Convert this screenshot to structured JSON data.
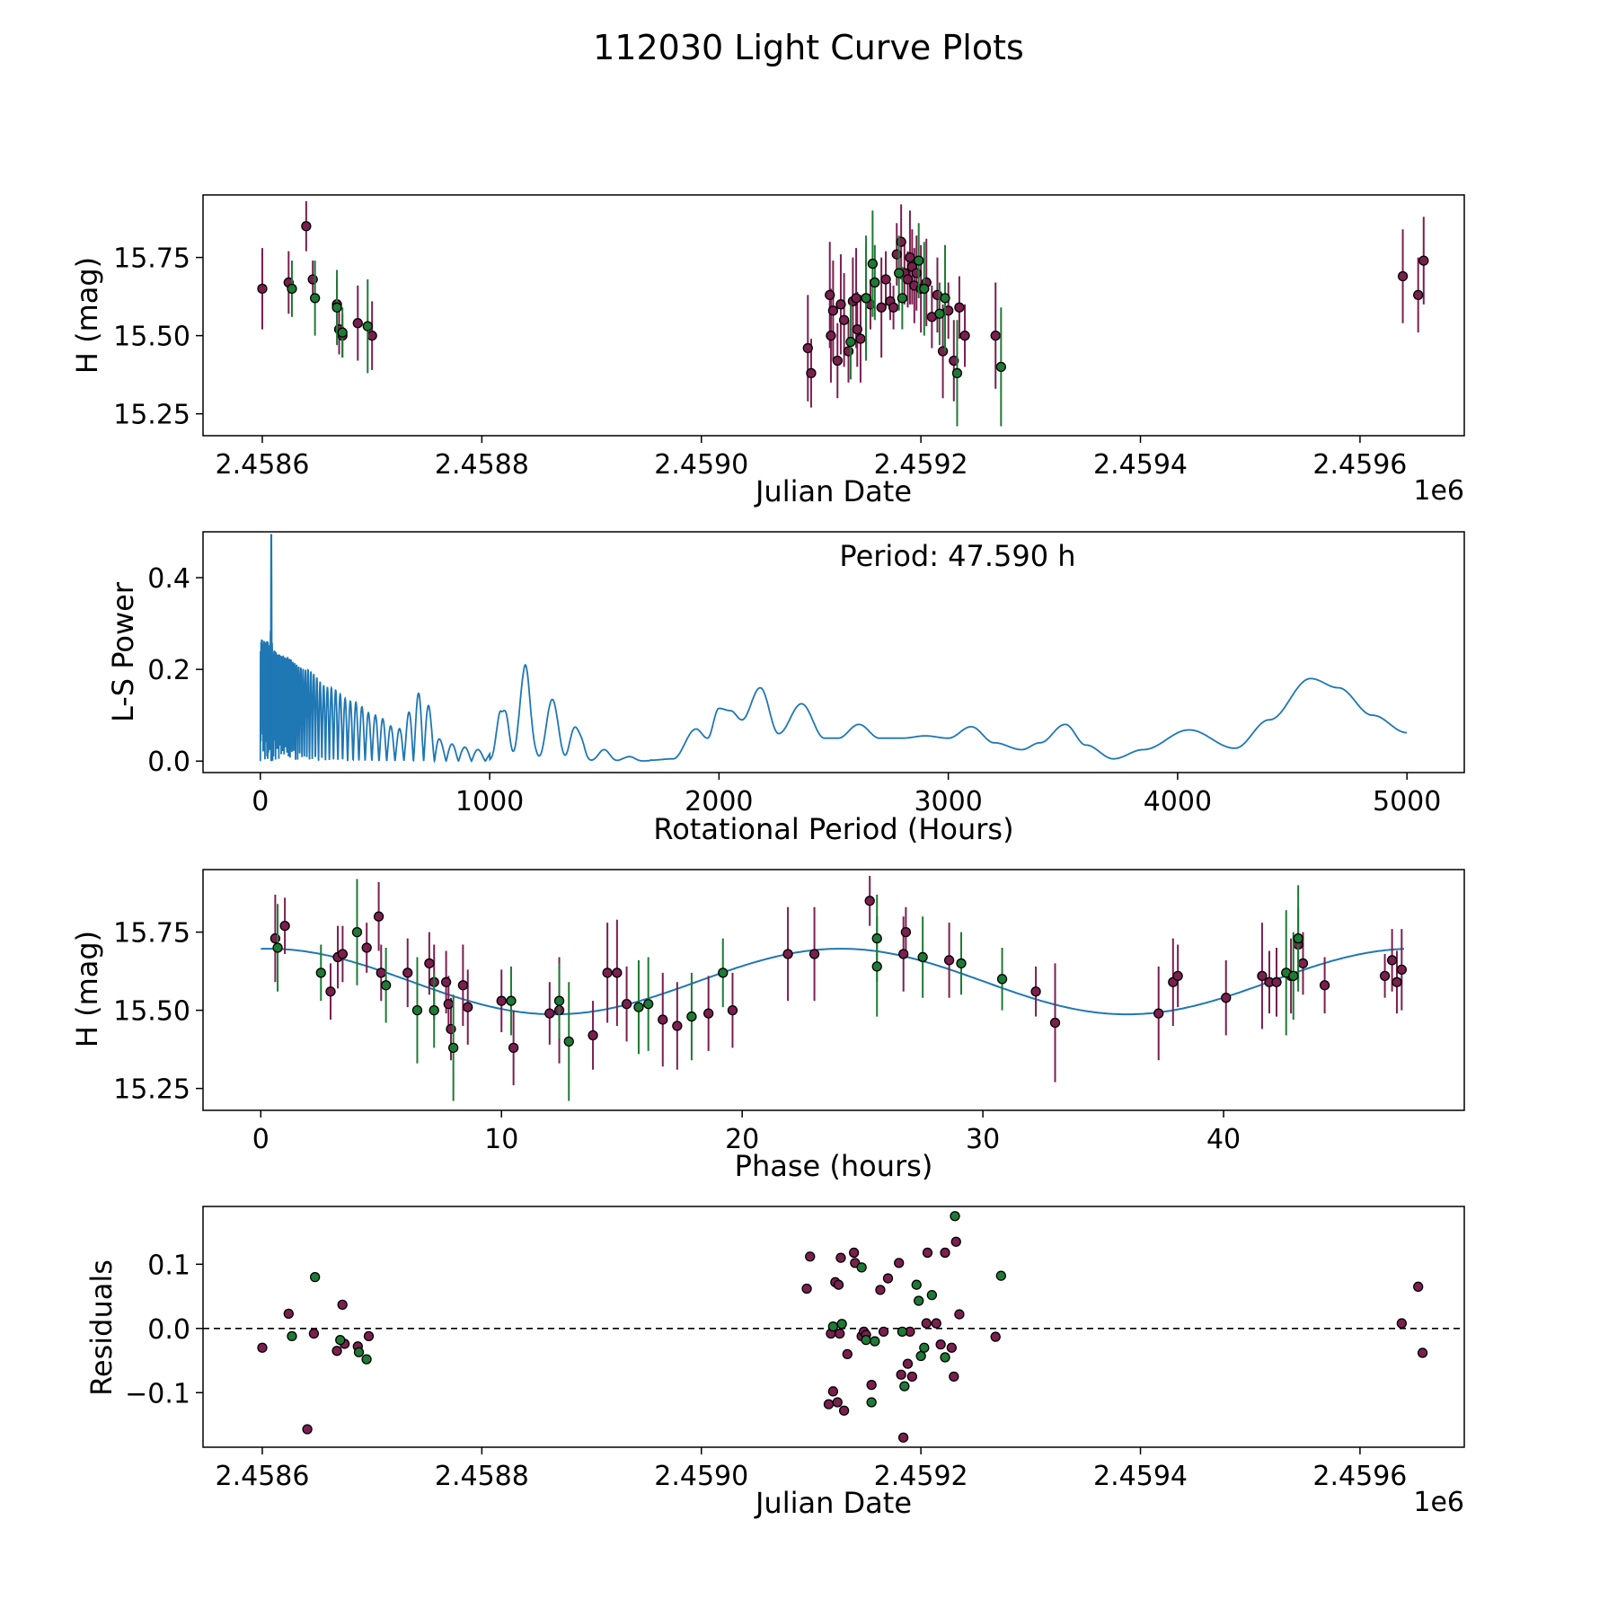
{
  "figure": {
    "title": "112030 Light Curve Plots"
  },
  "colors": {
    "purple": "#7a1f4f",
    "green": "#1e7a35",
    "line": "#1f77b4",
    "frame": "#000000"
  },
  "chart_data": [
    {
      "id": "lightcurve",
      "type": "scatter",
      "xlabel": "Julian Date",
      "ylabel": "H (mag)",
      "xlim": [
        2458546,
        2459695
      ],
      "ylim": [
        15.18,
        15.95
      ],
      "xticks": [
        2458600,
        2458800,
        2459000,
        2459200,
        2459400,
        2459600
      ],
      "xtick_labels": [
        "2.4586",
        "2.4588",
        "2.4590",
        "2.4592",
        "2.4594",
        "2.4596"
      ],
      "offset_label": "1e6",
      "yticks": [
        15.25,
        15.5,
        15.75
      ],
      "ytick_labels": [
        "15.25",
        "15.50",
        "15.75"
      ],
      "series": [
        {
          "name": "purple",
          "color": "purple",
          "x": [
            2458600,
            2458624,
            2458640,
            2458646,
            2458668,
            2458670,
            2458673,
            2458687,
            2458700,
            2459097,
            2459100,
            2459117,
            2459118,
            2459120,
            2459124,
            2459127,
            2459130,
            2459134,
            2459138,
            2459141,
            2459142,
            2459145,
            2459150,
            2459154,
            2459164,
            2459168,
            2459172,
            2459175,
            2459178,
            2459182,
            2459185,
            2459188,
            2459190,
            2459192,
            2459194,
            2459196,
            2459200,
            2459205,
            2459210,
            2459215,
            2459220,
            2459225,
            2459230,
            2459235,
            2459240,
            2459268,
            2459639,
            2459653,
            2459658
          ],
          "y": [
            15.65,
            15.67,
            15.85,
            15.68,
            15.6,
            15.52,
            15.5,
            15.54,
            15.5,
            15.46,
            15.38,
            15.63,
            15.5,
            15.58,
            15.42,
            15.6,
            15.55,
            15.45,
            15.61,
            15.62,
            15.52,
            15.49,
            15.62,
            15.6,
            15.59,
            15.68,
            15.61,
            15.59,
            15.76,
            15.8,
            15.7,
            15.68,
            15.75,
            15.72,
            15.66,
            15.7,
            15.65,
            15.67,
            15.56,
            15.63,
            15.45,
            15.58,
            15.42,
            15.59,
            15.5,
            15.5,
            15.69,
            15.63,
            15.74
          ],
          "err": [
            0.13,
            0.1,
            0.08,
            0.06,
            0.08,
            0.08,
            0.07,
            0.12,
            0.11,
            0.17,
            0.11,
            0.17,
            0.15,
            0.16,
            0.12,
            0.16,
            0.15,
            0.1,
            0.14,
            0.16,
            0.12,
            0.14,
            0.17,
            0.08,
            0.16,
            0.09,
            0.06,
            0.07,
            0.1,
            0.12,
            0.1,
            0.09,
            0.15,
            0.12,
            0.12,
            0.12,
            0.14,
            0.14,
            0.1,
            0.12,
            0.15,
            0.09,
            0.13,
            0.1,
            0.1,
            0.17,
            0.15,
            0.12,
            0.14
          ]
        },
        {
          "name": "green",
          "color": "green",
          "x": [
            2458627,
            2458648,
            2458668,
            2458673,
            2458696,
            2459136,
            2459150,
            2459156,
            2459158,
            2459180,
            2459183,
            2459198,
            2459203,
            2459217,
            2459222,
            2459233,
            2459273
          ],
          "y": [
            15.65,
            15.62,
            15.59,
            15.51,
            15.53,
            15.48,
            15.62,
            15.73,
            15.67,
            15.7,
            15.62,
            15.74,
            15.65,
            15.57,
            15.62,
            15.38,
            15.4
          ],
          "err": [
            0.09,
            0.12,
            0.12,
            0.08,
            0.15,
            0.12,
            0.2,
            0.17,
            0.12,
            0.12,
            0.1,
            0.12,
            0.15,
            0.1,
            0.17,
            0.17,
            0.19
          ]
        }
      ]
    },
    {
      "id": "periodogram",
      "type": "line",
      "xlabel": "Rotational Period (Hours)",
      "ylabel": "L-S Power",
      "annotation": "Period: 47.590 h",
      "xlim": [
        -250,
        5250
      ],
      "ylim": [
        -0.025,
        0.5
      ],
      "xticks": [
        0,
        1000,
        2000,
        3000,
        4000,
        5000
      ],
      "xtick_labels": [
        "0",
        "1000",
        "2000",
        "3000",
        "4000",
        "5000"
      ],
      "yticks": [
        0.0,
        0.2,
        0.4
      ],
      "ytick_labels": [
        "0.0",
        "0.2",
        "0.4"
      ],
      "best_period": 47.59,
      "peak_power": 0.495,
      "envelope_x": [
        0,
        100,
        200,
        300,
        400,
        500,
        600,
        700,
        800,
        900,
        1000,
        1050,
        1090,
        1150,
        1200,
        1280,
        1330,
        1400,
        1450,
        1500,
        1600,
        1700,
        1800,
        1900,
        1950,
        2000,
        2050,
        2100,
        2180,
        2260,
        2360,
        2460,
        2520,
        2610,
        2700,
        2800,
        2900,
        3000,
        3100,
        3200,
        3320,
        3400,
        3510,
        3600,
        3720,
        3850,
        4050,
        4250,
        4400,
        4580,
        4700,
        4850,
        5000
      ],
      "envelope_y": [
        0.27,
        0.23,
        0.2,
        0.16,
        0.13,
        0.1,
        0.07,
        0.15,
        0.04,
        0.03,
        0.02,
        0.11,
        0.215,
        0.215,
        0.11,
        0.135,
        0.13,
        0.06,
        0.02,
        0.025,
        0.01,
        0.002,
        0.005,
        0.07,
        0.05,
        0.115,
        0.11,
        0.09,
        0.16,
        0.06,
        0.125,
        0.05,
        0.05,
        0.08,
        0.05,
        0.05,
        0.055,
        0.05,
        0.075,
        0.04,
        0.025,
        0.04,
        0.08,
        0.035,
        0.005,
        0.025,
        0.068,
        0.028,
        0.09,
        0.18,
        0.16,
        0.1,
        0.062
      ]
    },
    {
      "id": "phased",
      "type": "scatter",
      "xlabel": "Phase (hours)",
      "ylabel": "H (mag)",
      "xlim": [
        -2.4,
        50.0
      ],
      "ylim": [
        15.18,
        15.95
      ],
      "xticks": [
        0,
        10,
        20,
        30,
        40
      ],
      "xtick_labels": [
        "0",
        "10",
        "20",
        "30",
        "40"
      ],
      "yticks": [
        15.25,
        15.5,
        15.75
      ],
      "ytick_labels": [
        "15.25",
        "15.50",
        "15.75"
      ],
      "fit": {
        "mean": 15.592,
        "amplitude": 0.105,
        "period": 23.795,
        "phase_peak": 0.3,
        "range": [
          0,
          47.59
        ]
      },
      "series": [
        {
          "name": "purple",
          "color": "purple",
          "x": [
            0.6,
            1.0,
            2.9,
            3.2,
            3.4,
            4.4,
            4.9,
            5.0,
            6.1,
            7.0,
            7.2,
            7.7,
            7.8,
            7.9,
            8.4,
            8.6,
            10.0,
            10.5,
            12.0,
            12.4,
            13.8,
            14.4,
            14.8,
            15.2,
            16.7,
            17.3,
            18.6,
            19.6,
            21.9,
            23.0,
            25.3,
            26.7,
            26.8,
            28.6,
            32.2,
            33.0,
            37.3,
            37.9,
            38.1,
            40.1,
            41.6,
            41.9,
            42.2,
            42.8,
            43.1,
            43.3,
            44.2,
            46.7,
            47.0,
            47.2,
            47.4
          ],
          "y": [
            15.73,
            15.77,
            15.56,
            15.67,
            15.68,
            15.7,
            15.8,
            15.62,
            15.62,
            15.65,
            15.59,
            15.59,
            15.52,
            15.44,
            15.58,
            15.51,
            15.53,
            15.38,
            15.49,
            15.5,
            15.42,
            15.62,
            15.62,
            15.52,
            15.47,
            15.45,
            15.49,
            15.5,
            15.68,
            15.68,
            15.85,
            15.68,
            15.75,
            15.66,
            15.56,
            15.46,
            15.49,
            15.59,
            15.61,
            15.54,
            15.61,
            15.59,
            15.59,
            15.61,
            15.71,
            15.65,
            15.58,
            15.61,
            15.66,
            15.59,
            15.63
          ],
          "err": [
            0.14,
            0.09,
            0.09,
            0.1,
            0.09,
            0.08,
            0.11,
            0.09,
            0.11,
            0.1,
            0.12,
            0.1,
            0.09,
            0.1,
            0.13,
            0.12,
            0.1,
            0.12,
            0.1,
            0.17,
            0.11,
            0.16,
            0.17,
            0.12,
            0.15,
            0.14,
            0.12,
            0.12,
            0.15,
            0.15,
            0.08,
            0.12,
            0.08,
            0.12,
            0.08,
            0.19,
            0.15,
            0.14,
            0.1,
            0.12,
            0.17,
            0.1,
            0.11,
            0.12,
            0.12,
            0.1,
            0.09,
            0.07,
            0.1,
            0.1,
            0.13
          ]
        },
        {
          "name": "green",
          "color": "green",
          "x": [
            0.7,
            2.5,
            4.0,
            5.2,
            6.5,
            7.2,
            8.0,
            10.4,
            12.4,
            12.8,
            15.7,
            16.1,
            17.9,
            19.2,
            25.6,
            25.6,
            27.5,
            29.1,
            30.8,
            42.6,
            42.9,
            43.1
          ],
          "y": [
            15.7,
            15.62,
            15.75,
            15.58,
            15.5,
            15.5,
            15.38,
            15.53,
            15.53,
            15.4,
            15.51,
            15.52,
            15.48,
            15.62,
            15.73,
            15.64,
            15.67,
            15.65,
            15.6,
            15.62,
            15.61,
            15.73
          ],
          "err": [
            0.14,
            0.09,
            0.17,
            0.12,
            0.17,
            0.12,
            0.17,
            0.11,
            0.12,
            0.19,
            0.15,
            0.15,
            0.14,
            0.11,
            0.14,
            0.16,
            0.13,
            0.1,
            0.1,
            0.2,
            0.14,
            0.17
          ]
        }
      ]
    },
    {
      "id": "residuals",
      "type": "scatter",
      "xlabel": "Julian Date",
      "ylabel": "Residuals",
      "xlim": [
        2458546,
        2459695
      ],
      "ylim": [
        -0.185,
        0.19
      ],
      "xticks": [
        2458600,
        2458800,
        2459000,
        2459200,
        2459400,
        2459600
      ],
      "xtick_labels": [
        "2.4586",
        "2.4588",
        "2.4590",
        "2.4592",
        "2.4594",
        "2.4596"
      ],
      "offset_label": "1e6",
      "yticks": [
        -0.1,
        0.0,
        0.1
      ],
      "ytick_labels": [
        "−0.1",
        "0.0",
        "0.1"
      ],
      "reference_y": 0.0,
      "series": [
        {
          "name": "purple",
          "color": "purple",
          "x": [
            2458600,
            2458624,
            2458641,
            2458647,
            2458668,
            2458673,
            2458675,
            2458687,
            2458697,
            2459096,
            2459099,
            2459116,
            2459118,
            2459120,
            2459122,
            2459124,
            2459125,
            2459126,
            2459127,
            2459130,
            2459133,
            2459139,
            2459140,
            2459146,
            2459148,
            2459150,
            2459155,
            2459163,
            2459166,
            2459170,
            2459180,
            2459182,
            2459184,
            2459188,
            2459190,
            2459192,
            2459205,
            2459206,
            2459214,
            2459218,
            2459222,
            2459228,
            2459230,
            2459232,
            2459235,
            2459268,
            2459638,
            2459653,
            2459657
          ],
          "y": [
            -0.03,
            0.023,
            -0.157,
            -0.008,
            -0.035,
            0.037,
            -0.024,
            -0.028,
            -0.012,
            0.062,
            0.112,
            -0.118,
            -0.008,
            -0.098,
            0.072,
            -0.115,
            0.068,
            -0.008,
            0.11,
            -0.128,
            -0.04,
            0.118,
            0.102,
            -0.012,
            -0.005,
            -0.01,
            -0.088,
            0.06,
            -0.005,
            0.078,
            0.102,
            -0.072,
            -0.17,
            -0.055,
            -0.005,
            -0.075,
            0.008,
            0.118,
            0.008,
            -0.025,
            0.118,
            -0.03,
            -0.075,
            0.135,
            0.022,
            -0.013,
            0.008,
            0.065,
            -0.038
          ],
          "err": []
        },
        {
          "name": "green",
          "color": "green",
          "x": [
            2458627,
            2458648,
            2458671,
            2458688,
            2458695,
            2459120,
            2459128,
            2459146,
            2459150,
            2459155,
            2459158,
            2459183,
            2459185,
            2459196,
            2459198,
            2459200,
            2459203,
            2459210,
            2459222,
            2459231,
            2459273
          ],
          "y": [
            -0.012,
            0.08,
            -0.018,
            -0.037,
            -0.048,
            0.003,
            0.007,
            0.095,
            -0.018,
            -0.115,
            -0.02,
            -0.005,
            -0.09,
            0.068,
            0.043,
            -0.043,
            -0.03,
            0.052,
            -0.045,
            0.175,
            0.082
          ],
          "err": []
        }
      ]
    }
  ]
}
